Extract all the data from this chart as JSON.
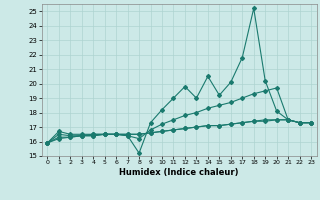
{
  "x": [
    0,
    1,
    2,
    3,
    4,
    5,
    6,
    7,
    8,
    9,
    10,
    11,
    12,
    13,
    14,
    15,
    16,
    17,
    18,
    19,
    20,
    21,
    22,
    23
  ],
  "line1": [
    15.9,
    16.7,
    16.5,
    16.5,
    16.5,
    16.5,
    16.5,
    16.4,
    15.2,
    17.3,
    18.2,
    19.0,
    19.8,
    19.0,
    20.5,
    19.2,
    20.1,
    21.8,
    25.2,
    20.2,
    18.1,
    17.5,
    17.3,
    17.3
  ],
  "line2": [
    15.9,
    16.5,
    16.4,
    16.4,
    16.5,
    16.5,
    16.5,
    16.4,
    16.2,
    16.8,
    17.2,
    17.5,
    17.8,
    18.0,
    18.3,
    18.5,
    18.7,
    19.0,
    19.3,
    19.5,
    19.7,
    17.5,
    17.3,
    17.3
  ],
  "line3": [
    15.9,
    16.3,
    16.3,
    16.4,
    16.4,
    16.5,
    16.5,
    16.5,
    16.5,
    16.6,
    16.7,
    16.8,
    16.9,
    17.0,
    17.1,
    17.1,
    17.2,
    17.3,
    17.4,
    17.5,
    17.5,
    17.5,
    17.3,
    17.3
  ],
  "line4": [
    15.9,
    16.2,
    16.3,
    16.4,
    16.4,
    16.5,
    16.5,
    16.5,
    16.5,
    16.6,
    16.7,
    16.8,
    16.9,
    17.0,
    17.1,
    17.1,
    17.2,
    17.3,
    17.4,
    17.4,
    17.5,
    17.5,
    17.3,
    17.3
  ],
  "color": "#1a7a6e",
  "bg_color": "#cce9e7",
  "grid_color": "#aed4d1",
  "xlabel": "Humidex (Indice chaleur)",
  "xlim": [
    -0.5,
    23.5
  ],
  "ylim": [
    15,
    25.5
  ],
  "yticks": [
    15,
    16,
    17,
    18,
    19,
    20,
    21,
    22,
    23,
    24,
    25
  ],
  "xticks": [
    0,
    1,
    2,
    3,
    4,
    5,
    6,
    7,
    8,
    9,
    10,
    11,
    12,
    13,
    14,
    15,
    16,
    17,
    18,
    19,
    20,
    21,
    22,
    23
  ]
}
